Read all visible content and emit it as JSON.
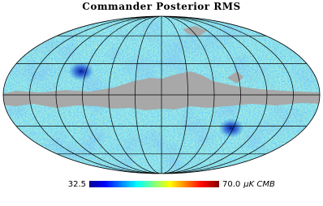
{
  "title": "Commander Posterior RMS",
  "colorbar": {
    "min_label": "32.5",
    "max_label": "70.0",
    "unit": "μK CMB"
  }
}
